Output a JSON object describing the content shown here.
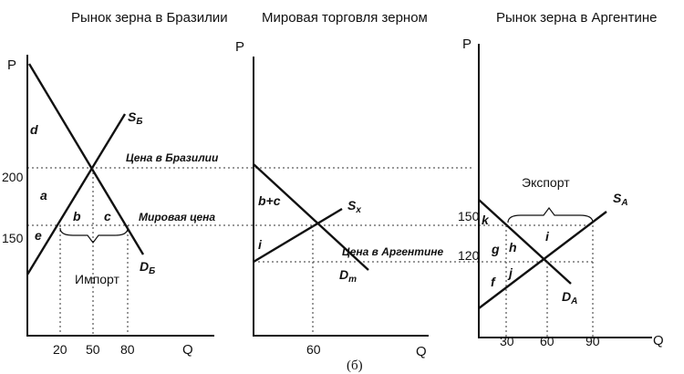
{
  "panels": {
    "brazil": {
      "title": "Рынок зерна в Бразилии",
      "y_axis": "P",
      "x_axis": "Q",
      "y_ticks": [
        "200",
        "150"
      ],
      "x_ticks": [
        "20",
        "50",
        "80"
      ],
      "supply_label": "S",
      "supply_sub": "Б",
      "demand_label": "D",
      "demand_sub": "Б",
      "areas": [
        "d",
        "a",
        "b",
        "c",
        "e"
      ],
      "price_note": "Цена в Бразилии",
      "world_price_note": "Мировая цена",
      "import_label": "Импорт"
    },
    "world": {
      "title": "Мировая торговля зерном",
      "y_axis": "P",
      "x_axis": "Q",
      "x_ticks": [
        "60"
      ],
      "supply_label": "S",
      "supply_sub": "x",
      "demand_label": "D",
      "demand_sub": "m",
      "areas": [
        "b+c",
        "i"
      ],
      "argentina_price_note": "Цена в Аргентине"
    },
    "argentina": {
      "title": "Рынок зерна в Аргентине",
      "y_axis": "P",
      "x_axis": "Q",
      "y_ticks": [
        "150",
        "120"
      ],
      "x_ticks": [
        "30",
        "60",
        "90"
      ],
      "supply_label": "S",
      "supply_sub": "A",
      "demand_label": "D",
      "demand_sub": "A",
      "areas": [
        "k",
        "g",
        "h",
        "i",
        "f",
        "j"
      ],
      "export_label": "Экспорт"
    }
  },
  "caption": "(б)"
}
